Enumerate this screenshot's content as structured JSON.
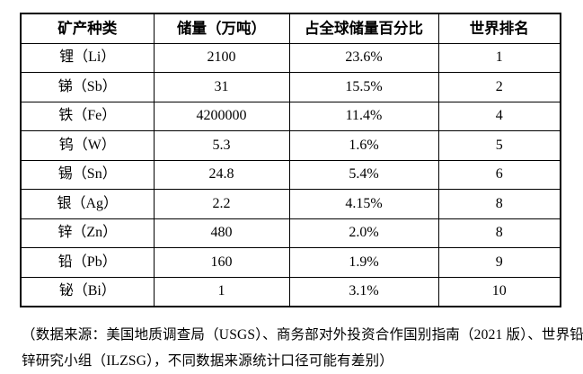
{
  "page": {
    "background_color": "#ffffff",
    "text_color": "#000000",
    "border_color": "#000000"
  },
  "table": {
    "headers": [
      "矿产种类",
      "储量（万吨）",
      "占全球储量百分比",
      "世界排名"
    ],
    "rows": [
      [
        "锂（Li）",
        "2100",
        "23.6%",
        "1"
      ],
      [
        "锑（Sb）",
        "31",
        "15.5%",
        "2"
      ],
      [
        "铁（Fe）",
        "4200000",
        "11.4%",
        "4"
      ],
      [
        "钨（W）",
        "5.3",
        "1.6%",
        "5"
      ],
      [
        "锡（Sn）",
        "24.8",
        "5.4%",
        "6"
      ],
      [
        "银（Ag）",
        "2.2",
        "4.15%",
        "8"
      ],
      [
        "锌（Zn）",
        "480",
        "2.0%",
        "8"
      ],
      [
        "铅（Pb）",
        "160",
        "1.9%",
        "9"
      ],
      [
        "铋（Bi）",
        "1",
        "3.1%",
        "10"
      ]
    ]
  },
  "footnote": {
    "line1": "（数据来源：美国地质调查局（USGS）、商务部对外投资合作国别指南（2021 版）、世界铅",
    "line2": "锌研究小组（ILZSG），不同数据来源统计口径可能有差别）"
  }
}
